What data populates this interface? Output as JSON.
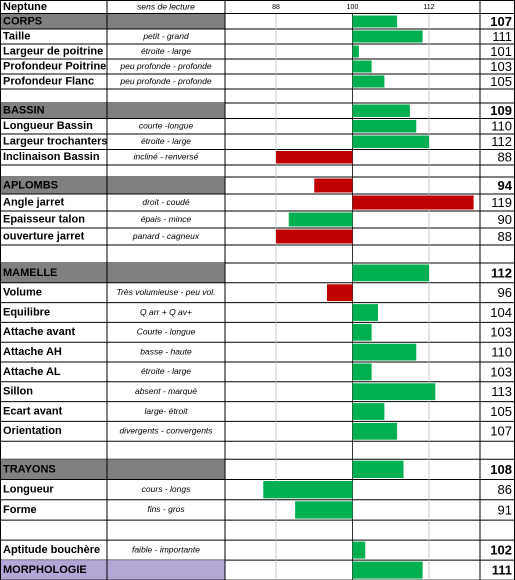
{
  "chart_data": {
    "type": "bar",
    "title": "Neptune",
    "subtitle": "sens de lecture",
    "xlim": [
      80,
      120
    ],
    "xticks": [
      88,
      100,
      112
    ],
    "baseline": 100,
    "groups": [
      {
        "rows": [
          {
            "name": "CORPS",
            "value": 107,
            "color": "#00b050",
            "highlight": "#808080",
            "bold": true
          },
          {
            "name": "Taille",
            "description": "petit - grand",
            "value": 111,
            "color": "#00b050"
          },
          {
            "name": "Largeur de poitrine",
            "description": "étroite - large",
            "value": 101,
            "color": "#00b050"
          },
          {
            "name": "Profondeur Poitrine",
            "description": "peu profonde - profonde",
            "value": 103,
            "color": "#00b050"
          },
          {
            "name": "Profondeur Flanc",
            "description": "peu profonde - profonde",
            "value": 105,
            "color": "#00b050"
          }
        ]
      },
      {
        "rows": [
          {
            "name": "BASSIN",
            "value": 109,
            "color": "#00b050",
            "highlight": "#808080",
            "bold": true
          },
          {
            "name": "Longueur Bassin",
            "description": "courte -longue",
            "value": 110,
            "color": "#00b050"
          },
          {
            "name": "Largeur trochanters",
            "description": "étroite - large",
            "value": 112,
            "color": "#00b050"
          },
          {
            "name": "Inclinaison Bassin",
            "description": "incliné - renversé",
            "value": 88,
            "color": "#c00000"
          }
        ]
      },
      {
        "rows": [
          {
            "name": "APLOMBS",
            "value": 94,
            "color": "#c00000",
            "highlight": "#808080",
            "bold": true
          },
          {
            "name": "Angle jarret",
            "description": "droit - coudé",
            "value": 119,
            "color": "#c00000"
          },
          {
            "name": "Epaisseur talon",
            "description": "épais - mince",
            "value": 90,
            "color": "#00b050"
          },
          {
            "name": "ouverture jarret",
            "description": "panard - cagneux",
            "value": 88,
            "color": "#c00000"
          }
        ]
      },
      {
        "rows": [
          {
            "name": "MAMELLE",
            "value": 112,
            "color": "#00b050",
            "highlight": "#808080",
            "bold": true
          },
          {
            "name": "Volume",
            "description": "Très volumieuse - peu vol.",
            "value": 96,
            "color": "#c00000"
          },
          {
            "name": "Equilibre",
            "description": "Q arr +        Q av+",
            "value": 104,
            "color": "#00b050"
          },
          {
            "name": "Attache avant",
            "description": "Courte - longue",
            "value": 103,
            "color": "#00b050"
          },
          {
            "name": "Attache AH",
            "description": "basse - haute",
            "value": 110,
            "color": "#00b050"
          },
          {
            "name": "Attache AL",
            "description": "étroite - large",
            "value": 103,
            "color": "#00b050"
          },
          {
            "name": "Sillon",
            "description": "absent - marqué",
            "value": 113,
            "color": "#00b050"
          },
          {
            "name": "Ecart avant",
            "description": "large- étroit",
            "value": 105,
            "color": "#00b050"
          },
          {
            "name": "Orientation",
            "description": "divergents - convergents",
            "value": 107,
            "color": "#00b050"
          }
        ]
      },
      {
        "rows": [
          {
            "name": "TRAYONS",
            "value": 108,
            "color": "#00b050",
            "highlight": "#808080",
            "bold": true
          },
          {
            "name": "Longueur",
            "description": "cours - longs",
            "value": 86,
            "color": "#00b050"
          },
          {
            "name": "Forme",
            "description": "fins - gros",
            "value": 91,
            "color": "#00b050"
          }
        ]
      },
      {
        "rows": [
          {
            "name": "Aptitude bouchère",
            "description": "faible - importante",
            "value": 102,
            "color": "#00b050",
            "bold": true
          },
          {
            "name": "MORPHOLOGIE",
            "value": 111,
            "color": "#00b050",
            "highlight": "#b4a7d6",
            "bold": true
          }
        ]
      }
    ]
  }
}
